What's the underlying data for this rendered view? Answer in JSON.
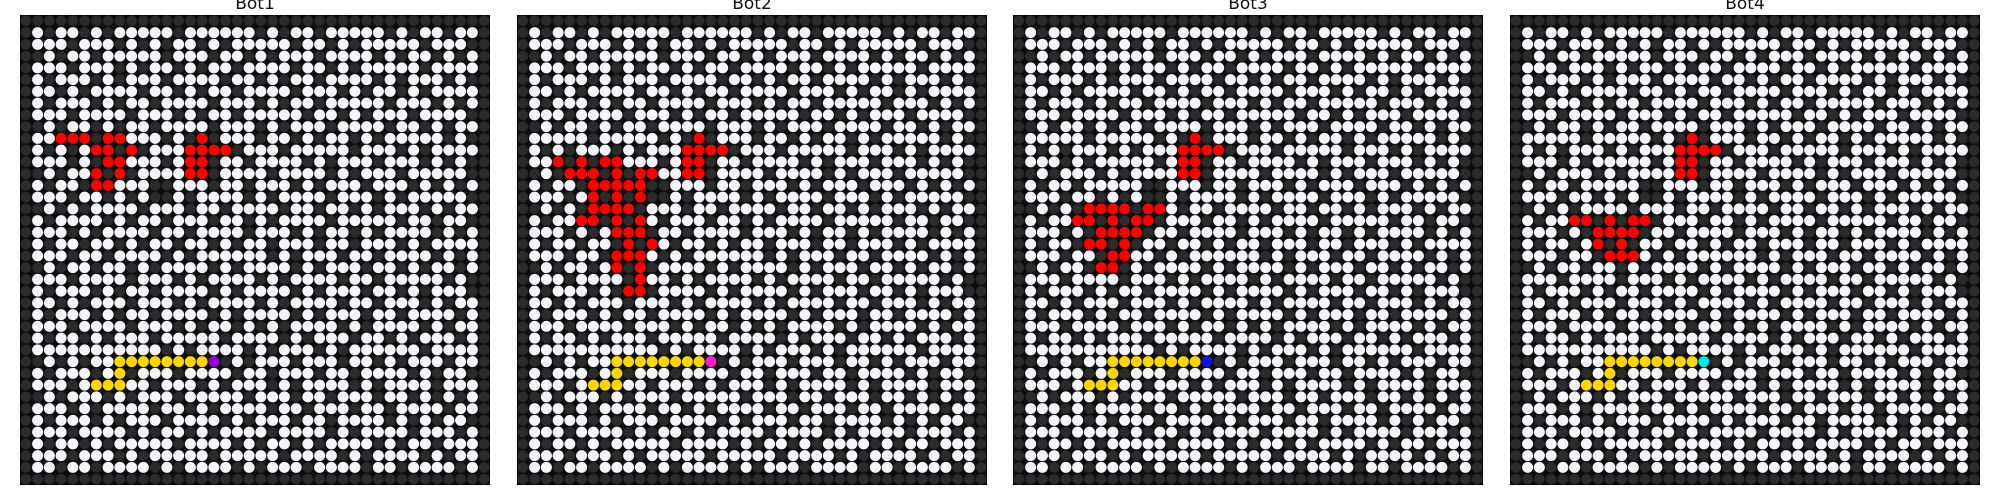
{
  "grid": {
    "size": 40,
    "legend": {
      "#": "wall",
      ".": "open cell",
      "F": "fire",
      "P": "path",
      "B": "bot"
    },
    "cells": [
      "########################################",
      "#.#..#.#.....#......#.#..#.....#.#..#..#",
      "#...#...#.#.#..#.#.....#..#.#.....#...##",
      "##.#..#.....#...#..#.#...#....#.#..#.#.#",
      "#...#...#.#..#.#..#....#..#.#.....#....#",
      "#.#...#.#...#....#..#.#..#....#.#...#.##",
      "#..#.#....#..#.#..#....#...#.#..#.#....#",
      "#.#...#.#..#....#...#.#..#.....#...#.#.#",
      "#...#....#...#.#..#.....#..#.#...#....##",
      "##.#..#.#..#....#...#.#...#....#..#.#..#",
      "#.....#.....#.#F#...#..#.#..#.#.....#.##",
      "#.#.#...#.#...FFFF#...#.....#...#.#....#",
      "#...#.#.....#.FF#..#....#.#...#...#.#.##",
      "##.#...#.#....FF#....#....#.#...#.....##",
      "#.#..#.....##...#..#...#.#...#...#.#.#.#",
      "#...#..#.#.##.#....#.#....#...#.#.....##",
      "##.#.#....#...#..#....#..#..#.#...#.#..#",
      "#.#....#.#..#...#..#.#....#.....#..#..##",
      "#...#.#....#..#....#...#.#..#.#....#.#.#",
      "#.#..#..#.#..#..#.#..#...#..#...#.#....#",
      "#...#..#....#.#......#.#...#..#....#.#.#",
      "##.#..#..#.#....#.#....#.#...#..#.#..#.#",
      "#...#....#...#.#....#.#....#..#.....#.##",
      "#.#...#.#..#....#.#....#.#...#..#.#...##",
      "#..#.#...#...#.#....#.#....#..#...#.#..#",
      "#.#...#.#..#....#.#....#.#...#..#....#.#",
      "#...#....#...#.#..#.#.#....#.#....#.#..#",
      "#.#..#.#...#.....#....#.#...#..#.#...#.#",
      "#...........#.#....#.#...#.#......#....#",
      "##.#.#..PPPPPPPPB#.#...#...#..#.#...#..#",
      "#.#...#.P#...#....#..#...#..#....#.#..##",
      "#...#.PPP..#...#.#...#.#....#.#....#...#",
      "##.#...#.#...#.....#...#..#...#..#.#.#.#",
      "#...#.#....#..#.#....#..#...#..#....#..#",
      "#.#...#.#...#....#.#...#..#....#.#.#..##",
      "#...#....#.#..#.#....#....#.#....#...#.#",
      "#.#..#.#.....#....#.#..#.#....#.#..#...#",
      "#...#...#.#.....#.....#....#.#....#.#..#",
      "#..#..#....#.#....#.#...#....#..#....#.#",
      "########################################"
    ]
  },
  "colors": {
    "background": "#0d0d0d",
    "wall": "#2b2b2b",
    "open": "#f4f4fb",
    "path": "#ffd700",
    "border": "#000000"
  },
  "panels": [
    {
      "title": "Bot1",
      "bot_color": "#9400d3",
      "fire_cells": [
        [
          3,
          10
        ],
        [
          4,
          10
        ],
        [
          5,
          10
        ],
        [
          6,
          10
        ],
        [
          7,
          10
        ],
        [
          8,
          10
        ],
        [
          6,
          11
        ],
        [
          7,
          11
        ],
        [
          8,
          11
        ],
        [
          9,
          11
        ],
        [
          6,
          12
        ],
        [
          7,
          12
        ],
        [
          8,
          12
        ],
        [
          6,
          13
        ],
        [
          7,
          13
        ],
        [
          8,
          13
        ],
        [
          6,
          14
        ],
        [
          7,
          14
        ]
      ]
    },
    {
      "title": "Bot2",
      "bot_color": "#ff1cc8",
      "fire_cells": [
        [
          3,
          12
        ],
        [
          4,
          12
        ],
        [
          5,
          12
        ],
        [
          6,
          12
        ],
        [
          7,
          12
        ],
        [
          8,
          12
        ],
        [
          3,
          13
        ],
        [
          4,
          13
        ],
        [
          5,
          13
        ],
        [
          6,
          13
        ],
        [
          7,
          13
        ],
        [
          8,
          13
        ],
        [
          9,
          13
        ],
        [
          10,
          13
        ],
        [
          11,
          13
        ],
        [
          5,
          14
        ],
        [
          6,
          14
        ],
        [
          7,
          14
        ],
        [
          8,
          14
        ],
        [
          9,
          14
        ],
        [
          10,
          14
        ],
        [
          6,
          15
        ],
        [
          7,
          15
        ],
        [
          8,
          15
        ],
        [
          9,
          15
        ],
        [
          10,
          15
        ],
        [
          6,
          16
        ],
        [
          7,
          16
        ],
        [
          8,
          16
        ],
        [
          9,
          16
        ],
        [
          10,
          16
        ],
        [
          7,
          17
        ],
        [
          8,
          17
        ],
        [
          9,
          17
        ],
        [
          10,
          17
        ],
        [
          8,
          18
        ],
        [
          9,
          18
        ],
        [
          10,
          18
        ],
        [
          8,
          19
        ],
        [
          9,
          19
        ],
        [
          10,
          19
        ],
        [
          11,
          19
        ],
        [
          8,
          20
        ],
        [
          9,
          20
        ],
        [
          10,
          20
        ],
        [
          8,
          21
        ],
        [
          9,
          21
        ],
        [
          10,
          21
        ],
        [
          9,
          22
        ],
        [
          10,
          22
        ],
        [
          9,
          23
        ],
        [
          10,
          23
        ],
        [
          9,
          15
        ],
        [
          10,
          15
        ],
        [
          11,
          15
        ],
        [
          12,
          15
        ],
        [
          5,
          16
        ],
        [
          6,
          16
        ],
        [
          5,
          17
        ],
        [
          6,
          17
        ]
      ]
    },
    {
      "title": "Bot3",
      "bot_color": "#1010e0",
      "fire_cells": [
        [
          5,
          16
        ],
        [
          6,
          16
        ],
        [
          7,
          16
        ],
        [
          8,
          16
        ],
        [
          9,
          16
        ],
        [
          10,
          16
        ],
        [
          11,
          16
        ],
        [
          12,
          16
        ],
        [
          5,
          17
        ],
        [
          6,
          17
        ],
        [
          7,
          17
        ],
        [
          8,
          17
        ],
        [
          9,
          17
        ],
        [
          10,
          17
        ],
        [
          11,
          17
        ],
        [
          6,
          18
        ],
        [
          7,
          18
        ],
        [
          8,
          18
        ],
        [
          9,
          18
        ],
        [
          10,
          18
        ],
        [
          6,
          19
        ],
        [
          7,
          19
        ],
        [
          8,
          19
        ],
        [
          9,
          19
        ],
        [
          7,
          20
        ],
        [
          8,
          20
        ],
        [
          9,
          20
        ],
        [
          7,
          21
        ],
        [
          8,
          21
        ]
      ]
    },
    {
      "title": "Bot4",
      "bot_color": "#00e5ee",
      "fire_cells": [
        [
          5,
          17
        ],
        [
          6,
          17
        ],
        [
          7,
          17
        ],
        [
          8,
          17
        ],
        [
          9,
          17
        ],
        [
          10,
          17
        ],
        [
          11,
          17
        ],
        [
          12,
          17
        ],
        [
          6,
          18
        ],
        [
          7,
          18
        ],
        [
          8,
          18
        ],
        [
          9,
          18
        ],
        [
          10,
          18
        ],
        [
          11,
          18
        ],
        [
          7,
          19
        ],
        [
          8,
          19
        ],
        [
          9,
          19
        ],
        [
          10,
          19
        ],
        [
          7,
          20
        ],
        [
          8,
          20
        ],
        [
          9,
          20
        ],
        [
          10,
          20
        ]
      ]
    }
  ]
}
